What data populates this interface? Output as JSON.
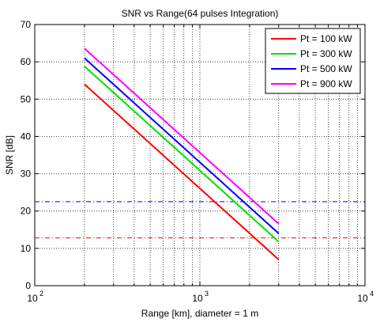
{
  "chart_data": {
    "type": "line",
    "title": "SNR vs Range(64 pulses Integration)",
    "xlabel": "Range [km], diameter = 1 m",
    "ylabel": "SNR [dB]",
    "xscale": "log",
    "xlim": [
      100,
      10000
    ],
    "ylim": [
      0,
      70
    ],
    "grid": true,
    "grid_style": "dotted",
    "legend_position": "top-right",
    "xticks": [
      {
        "value": 100,
        "base": "10",
        "exp": "2"
      },
      {
        "value": 1000,
        "base": "10",
        "exp": "3"
      },
      {
        "value": 10000,
        "base": "10",
        "exp": "4"
      }
    ],
    "yticks": [
      0,
      10,
      20,
      30,
      40,
      50,
      60,
      70
    ],
    "series": [
      {
        "name": "Pt = 100 kW",
        "color": "#ff0000",
        "x": [
          200,
          3000
        ],
        "y": [
          54.0,
          7.0
        ]
      },
      {
        "name": "Pt = 300 kW",
        "color": "#00e000",
        "x": [
          200,
          3000
        ],
        "y": [
          58.8,
          11.8
        ]
      },
      {
        "name": "Pt = 500 kW",
        "color": "#0000ff",
        "x": [
          200,
          3000
        ],
        "y": [
          61.0,
          14.0
        ]
      },
      {
        "name": "Pt = 900 kW",
        "color": "#ff00ff",
        "x": [
          200,
          3000
        ],
        "y": [
          63.6,
          16.6
        ]
      }
    ],
    "reference_lines": [
      {
        "y": 22.5,
        "color": "#0000ff",
        "style": "dash-dot"
      },
      {
        "y": 12.8,
        "color": "#ff0000",
        "style": "dash-dot"
      }
    ]
  }
}
